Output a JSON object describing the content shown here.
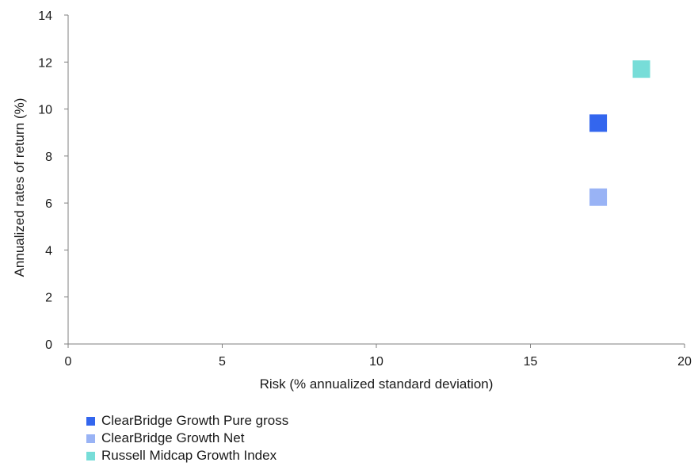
{
  "chart_data": {
    "type": "scatter",
    "title": "",
    "xlabel": "Risk (% annualized standard deviation)",
    "ylabel": "Annualized rates of return (%)",
    "xlim": [
      0,
      20
    ],
    "ylim": [
      0,
      14
    ],
    "xticks": [
      0,
      5,
      10,
      15,
      20
    ],
    "yticks": [
      0,
      2,
      4,
      6,
      8,
      10,
      12,
      14
    ],
    "grid": false,
    "legend_position": "bottom-left",
    "marker": "square",
    "series": [
      {
        "name": "ClearBridge Growth Pure gross",
        "color": "#3366ee",
        "points": [
          {
            "x": 17.2,
            "y": 9.4
          }
        ]
      },
      {
        "name": "ClearBridge Growth Net",
        "color": "#99b3f5",
        "points": [
          {
            "x": 17.2,
            "y": 6.25
          }
        ]
      },
      {
        "name": "Russell Midcap Growth Index",
        "color": "#77ddd8",
        "points": [
          {
            "x": 18.6,
            "y": 11.7
          }
        ]
      }
    ]
  }
}
